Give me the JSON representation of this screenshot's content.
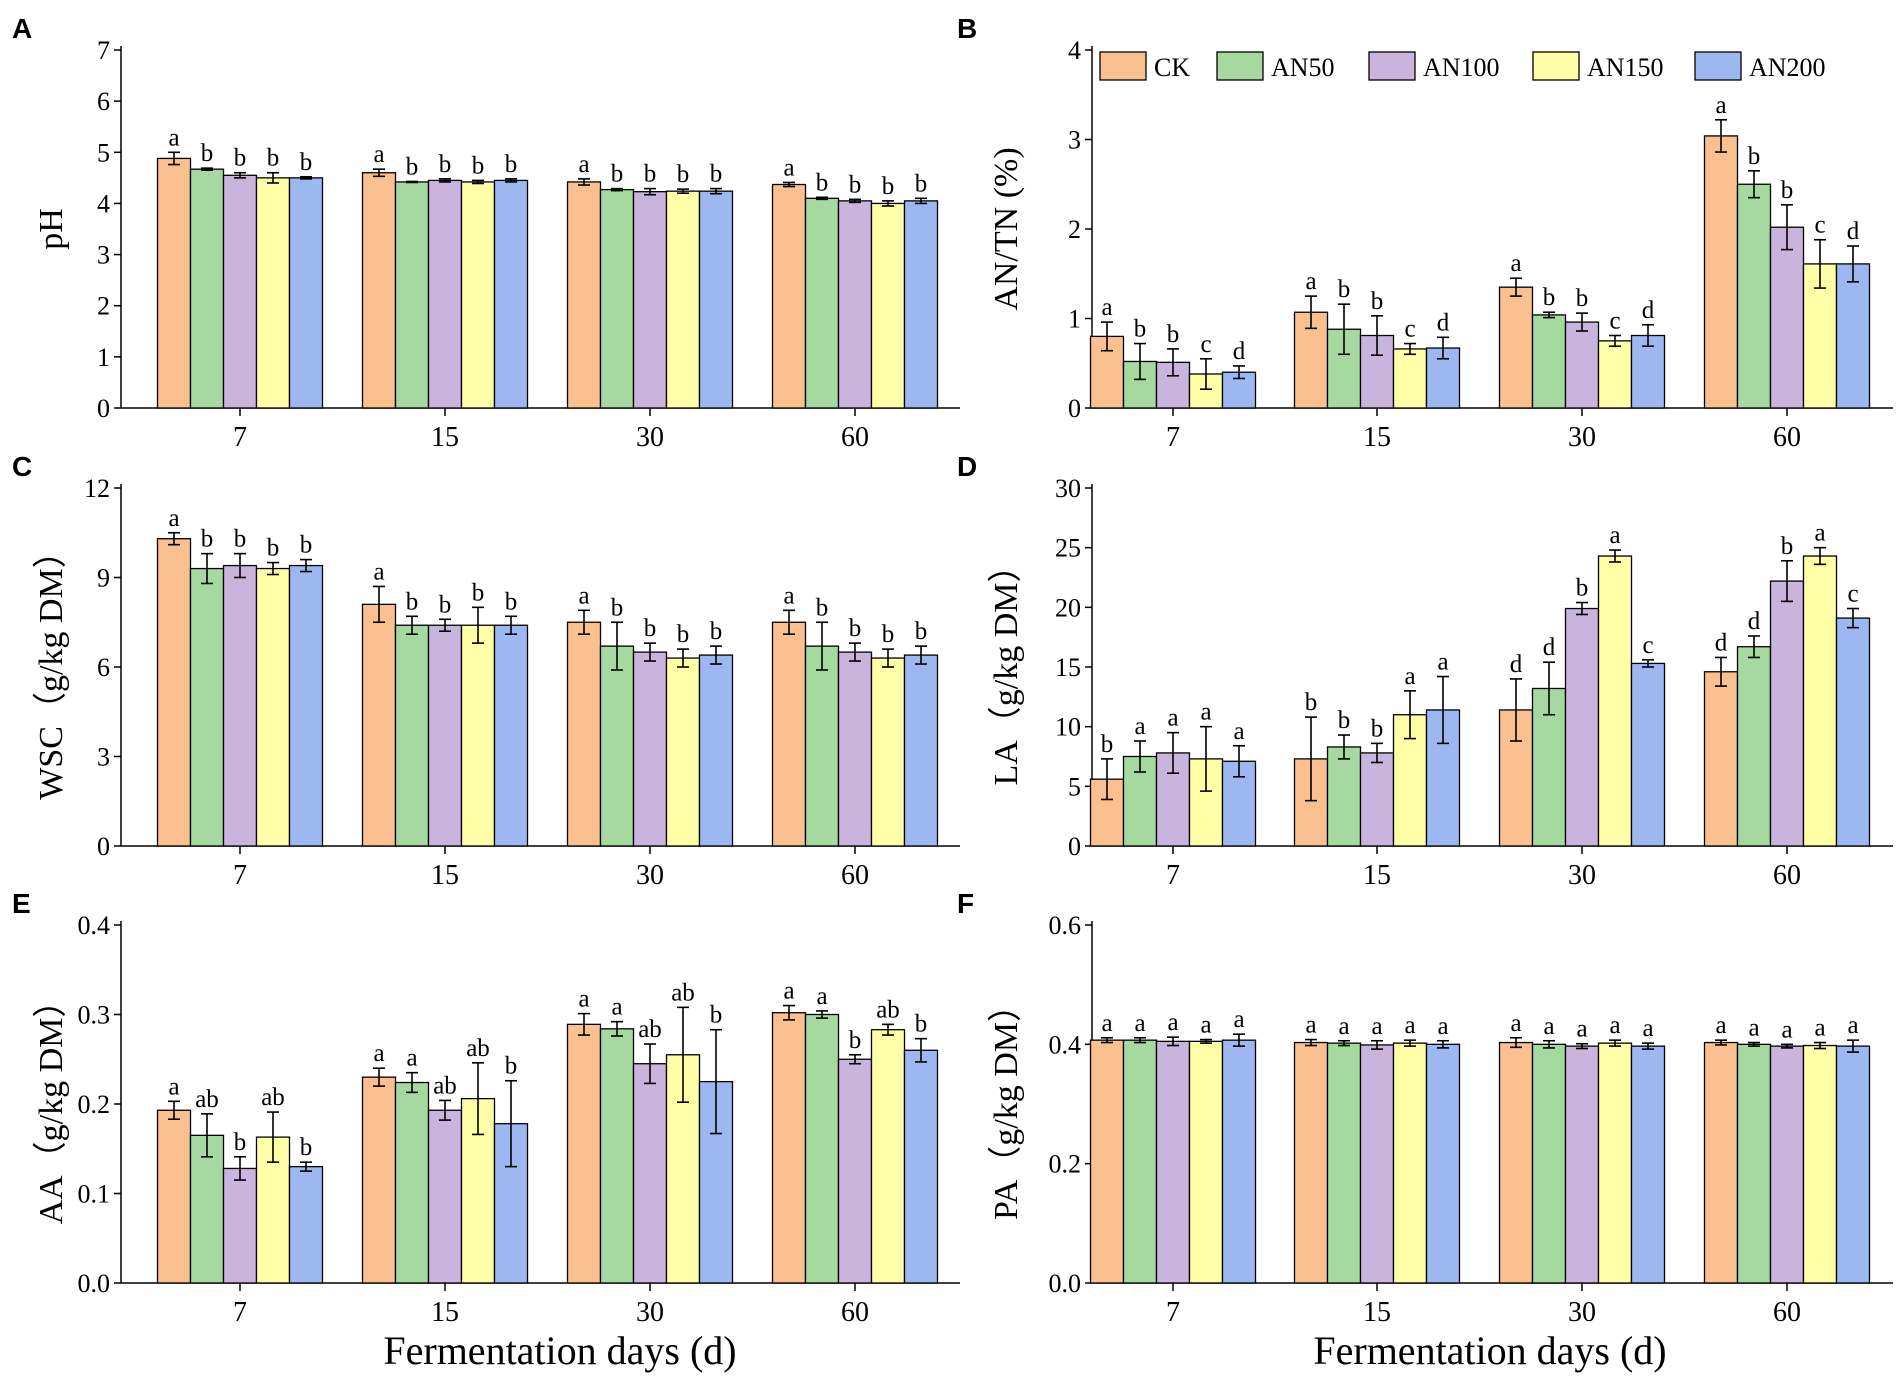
{
  "figure": {
    "series_names": [
      "CK",
      "AN50",
      "AN100",
      "AN150",
      "AN200"
    ],
    "series_colors": [
      "#FAC090",
      "#A6D9A0",
      "#C8B4DC",
      "#FFFFA8",
      "#9DB8F0"
    ],
    "shared_xlabel": "Fermentation days (d)"
  },
  "chart_data": [
    {
      "panel": "A",
      "type": "bar",
      "title": "",
      "categories": [
        "7",
        "15",
        "30",
        "60"
      ],
      "ylabel": "pH",
      "ylim": [
        0,
        7
      ],
      "yticks": [
        "0",
        "1",
        "2",
        "3",
        "4",
        "5",
        "6",
        "7"
      ],
      "xlabel": "",
      "series": [
        {
          "name": "CK",
          "values": [
            4.88,
            4.6,
            4.42,
            4.37
          ],
          "errors": [
            0.12,
            0.07,
            0.06,
            0.04
          ],
          "letters": [
            "a",
            "a",
            "a",
            "a"
          ]
        },
        {
          "name": "AN50",
          "values": [
            4.67,
            4.42,
            4.27,
            4.1
          ],
          "errors": [
            0.02,
            0.01,
            0.02,
            0.02
          ],
          "letters": [
            "b",
            "b",
            "b",
            "b"
          ]
        },
        {
          "name": "AN100",
          "values": [
            4.55,
            4.45,
            4.23,
            4.05
          ],
          "errors": [
            0.05,
            0.03,
            0.06,
            0.03
          ],
          "letters": [
            "b",
            "b",
            "b",
            "b"
          ]
        },
        {
          "name": "AN150",
          "values": [
            4.5,
            4.42,
            4.24,
            4.0
          ],
          "errors": [
            0.1,
            0.03,
            0.04,
            0.05
          ],
          "letters": [
            "b",
            "b",
            "b",
            "b"
          ]
        },
        {
          "name": "AN200",
          "values": [
            4.5,
            4.45,
            4.24,
            4.05
          ],
          "errors": [
            0.02,
            0.03,
            0.05,
            0.05
          ],
          "letters": [
            "b",
            "b",
            "b",
            "b"
          ]
        }
      ]
    },
    {
      "panel": "B",
      "type": "bar",
      "title": "",
      "categories": [
        "7",
        "15",
        "30",
        "60"
      ],
      "ylabel": "AN/TN (%)",
      "ylim": [
        0,
        4
      ],
      "yticks": [
        "0",
        "1",
        "2",
        "3",
        "4"
      ],
      "xlabel": "",
      "legend": "top",
      "series": [
        {
          "name": "CK",
          "values": [
            0.8,
            1.07,
            1.35,
            3.04
          ],
          "errors": [
            0.16,
            0.18,
            0.1,
            0.18
          ],
          "letters": [
            "a",
            "a",
            "a",
            "a"
          ]
        },
        {
          "name": "AN50",
          "values": [
            0.52,
            0.88,
            1.04,
            2.5
          ],
          "errors": [
            0.2,
            0.28,
            0.03,
            0.15
          ],
          "letters": [
            "b",
            "b",
            "b",
            "b"
          ]
        },
        {
          "name": "AN100",
          "values": [
            0.51,
            0.81,
            0.96,
            2.02
          ],
          "errors": [
            0.15,
            0.22,
            0.1,
            0.25
          ],
          "letters": [
            "b",
            "b",
            "b",
            "b"
          ]
        },
        {
          "name": "AN150",
          "values": [
            0.38,
            0.66,
            0.75,
            1.61
          ],
          "errors": [
            0.17,
            0.06,
            0.06,
            0.27
          ],
          "letters": [
            "c",
            "c",
            "c",
            "c"
          ]
        },
        {
          "name": "AN200",
          "values": [
            0.4,
            0.67,
            0.81,
            1.61
          ],
          "errors": [
            0.07,
            0.12,
            0.12,
            0.2
          ],
          "letters": [
            "d",
            "d",
            "d",
            "d"
          ]
        }
      ]
    },
    {
      "panel": "C",
      "type": "bar",
      "title": "",
      "categories": [
        "7",
        "15",
        "30",
        "60"
      ],
      "ylabel": "WSC（g/kg DM）",
      "ylim": [
        0,
        12
      ],
      "yticks": [
        "0",
        "3",
        "6",
        "9",
        "12"
      ],
      "xlabel": "",
      "series": [
        {
          "name": "CK",
          "values": [
            10.3,
            8.1,
            7.5,
            7.5
          ],
          "errors": [
            0.2,
            0.6,
            0.4,
            0.4
          ],
          "letters": [
            "a",
            "a",
            "a",
            "a"
          ]
        },
        {
          "name": "AN50",
          "values": [
            9.3,
            7.4,
            6.7,
            6.7
          ],
          "errors": [
            0.5,
            0.3,
            0.8,
            0.8
          ],
          "letters": [
            "b",
            "b",
            "b",
            "b"
          ]
        },
        {
          "name": "AN100",
          "values": [
            9.4,
            7.4,
            6.5,
            6.5
          ],
          "errors": [
            0.4,
            0.2,
            0.3,
            0.3
          ],
          "letters": [
            "b",
            "b",
            "b",
            "b"
          ]
        },
        {
          "name": "AN150",
          "values": [
            9.3,
            7.4,
            6.3,
            6.3
          ],
          "errors": [
            0.2,
            0.6,
            0.3,
            0.3
          ],
          "letters": [
            "b",
            "b",
            "b",
            "b"
          ]
        },
        {
          "name": "AN200",
          "values": [
            9.4,
            7.4,
            6.4,
            6.4
          ],
          "errors": [
            0.2,
            0.3,
            0.3,
            0.3
          ],
          "letters": [
            "b",
            "b",
            "b",
            "b"
          ]
        }
      ]
    },
    {
      "panel": "D",
      "type": "bar",
      "title": "",
      "categories": [
        "7",
        "15",
        "30",
        "60"
      ],
      "ylabel": "LA（g/kg DM）",
      "ylim": [
        0,
        30
      ],
      "yticks": [
        "0",
        "5",
        "10",
        "15",
        "20",
        "25",
        "30"
      ],
      "xlabel": "",
      "series": [
        {
          "name": "CK",
          "values": [
            5.6,
            7.3,
            11.4,
            14.6
          ],
          "errors": [
            1.7,
            3.5,
            2.6,
            1.2
          ],
          "letters": [
            "b",
            "b",
            "d",
            "d"
          ]
        },
        {
          "name": "AN50",
          "values": [
            7.5,
            8.3,
            13.2,
            16.7
          ],
          "errors": [
            1.3,
            1.0,
            2.2,
            0.9
          ],
          "letters": [
            "a",
            "b",
            "d",
            "d"
          ]
        },
        {
          "name": "AN100",
          "values": [
            7.8,
            7.8,
            19.9,
            22.2
          ],
          "errors": [
            1.7,
            0.8,
            0.5,
            1.7
          ],
          "letters": [
            "a",
            "b",
            "b",
            "b"
          ]
        },
        {
          "name": "AN150",
          "values": [
            7.3,
            11.0,
            24.3,
            24.3
          ],
          "errors": [
            2.7,
            2.0,
            0.5,
            0.7
          ],
          "letters": [
            "a",
            "a",
            "a",
            "a"
          ]
        },
        {
          "name": "AN200",
          "values": [
            7.1,
            11.4,
            15.3,
            19.1
          ],
          "errors": [
            1.3,
            2.8,
            0.3,
            0.8
          ],
          "letters": [
            "a",
            "a",
            "c",
            "c"
          ]
        }
      ]
    },
    {
      "panel": "E",
      "type": "bar",
      "title": "",
      "categories": [
        "7",
        "15",
        "30",
        "60"
      ],
      "ylabel": "AA（g/kg DM）",
      "ylim": [
        0,
        0.4
      ],
      "yticks": [
        "0.0",
        "0.1",
        "0.2",
        "0.3",
        "0.4"
      ],
      "xlabel": "Fermentation days (d)",
      "series": [
        {
          "name": "CK",
          "values": [
            0.193,
            0.23,
            0.289,
            0.302
          ],
          "errors": [
            0.01,
            0.01,
            0.012,
            0.008
          ],
          "letters": [
            "a",
            "a",
            "a",
            "a"
          ]
        },
        {
          "name": "AN50",
          "values": [
            0.165,
            0.224,
            0.284,
            0.3
          ],
          "errors": [
            0.024,
            0.011,
            0.008,
            0.004
          ],
          "letters": [
            "ab",
            "a",
            "a",
            "a"
          ]
        },
        {
          "name": "AN100",
          "values": [
            0.128,
            0.193,
            0.245,
            0.25
          ],
          "errors": [
            0.013,
            0.011,
            0.022,
            0.005
          ],
          "letters": [
            "b",
            "ab",
            "ab",
            "b"
          ]
        },
        {
          "name": "AN150",
          "values": [
            0.163,
            0.206,
            0.255,
            0.283
          ],
          "errors": [
            0.028,
            0.04,
            0.053,
            0.006
          ],
          "letters": [
            "ab",
            "ab",
            "ab",
            "ab"
          ]
        },
        {
          "name": "AN200",
          "values": [
            0.13,
            0.178,
            0.225,
            0.26
          ],
          "errors": [
            0.005,
            0.048,
            0.058,
            0.013
          ],
          "letters": [
            "b",
            "b",
            "b",
            "b"
          ]
        }
      ]
    },
    {
      "panel": "F",
      "type": "bar",
      "title": "",
      "categories": [
        "7",
        "15",
        "30",
        "60"
      ],
      "ylabel": "PA（g/kg DM）",
      "ylim": [
        0,
        0.6
      ],
      "yticks": [
        "0.0",
        "0.2",
        "0.4",
        "0.6"
      ],
      "xlabel": "Fermentation days (d)",
      "series": [
        {
          "name": "CK",
          "values": [
            0.407,
            0.403,
            0.403,
            0.403
          ],
          "errors": [
            0.004,
            0.005,
            0.008,
            0.004
          ],
          "letters": [
            "a",
            "a",
            "a",
            "a"
          ]
        },
        {
          "name": "AN50",
          "values": [
            0.407,
            0.402,
            0.4,
            0.4
          ],
          "errors": [
            0.004,
            0.004,
            0.006,
            0.003
          ],
          "letters": [
            "a",
            "a",
            "a",
            "a"
          ]
        },
        {
          "name": "AN100",
          "values": [
            0.405,
            0.399,
            0.397,
            0.397
          ],
          "errors": [
            0.007,
            0.007,
            0.004,
            0.003
          ],
          "letters": [
            "a",
            "a",
            "a",
            "a"
          ]
        },
        {
          "name": "AN150",
          "values": [
            0.405,
            0.402,
            0.402,
            0.398
          ],
          "errors": [
            0.003,
            0.005,
            0.005,
            0.005
          ],
          "letters": [
            "a",
            "a",
            "a",
            "a"
          ]
        },
        {
          "name": "AN200",
          "values": [
            0.407,
            0.4,
            0.397,
            0.397
          ],
          "errors": [
            0.01,
            0.006,
            0.005,
            0.01
          ],
          "letters": [
            "a",
            "a",
            "a",
            "a"
          ]
        }
      ]
    }
  ]
}
